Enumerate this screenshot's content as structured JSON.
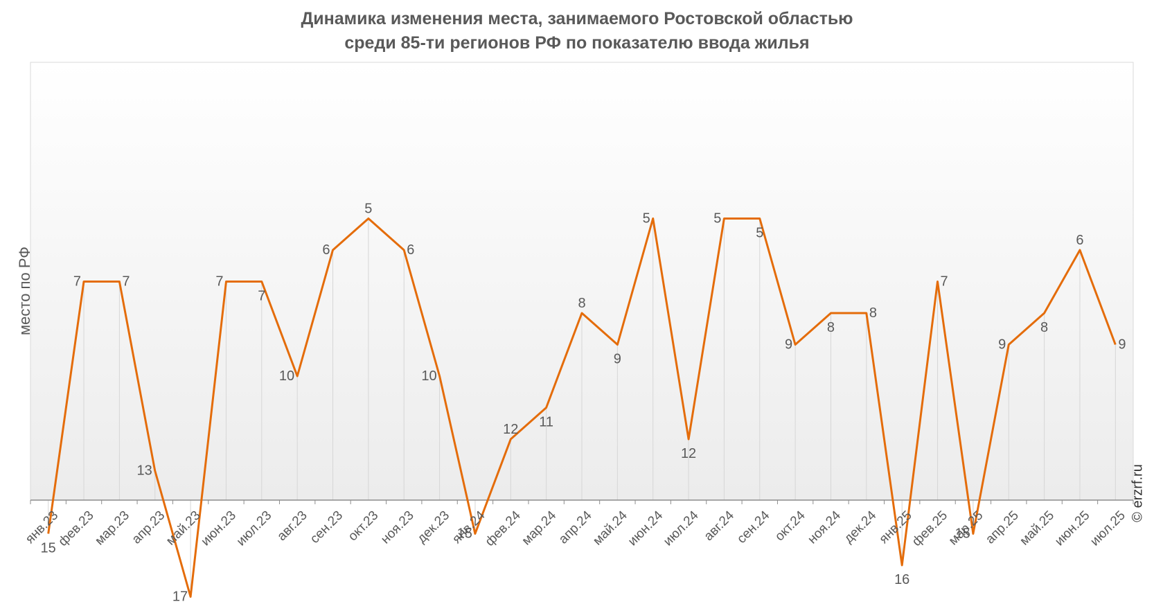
{
  "chart_data": {
    "type": "line",
    "title": [
      "Динамика изменения места, занимаемого Ростовской областью",
      "среди 85-ти регионов РФ по показателю ввода жилья"
    ],
    "ylabel": "место по РФ",
    "xlabel": "",
    "y_axis_inverted": true,
    "y_ticks_shown": false,
    "grid": "vertical drop lines at each point",
    "categories": [
      "янв.23",
      "фев.23",
      "мар.23",
      "апр.23",
      "май.23",
      "июн.23",
      "июл.23",
      "авг.23",
      "сен.23",
      "окт.23",
      "ноя.23",
      "дек.23",
      "янв.24",
      "фев.24",
      "мар.24",
      "апр.24",
      "май.24",
      "июн.24",
      "июл.24",
      "авг.24",
      "сен.24",
      "окт.24",
      "ноя.24",
      "дек.24",
      "янв.25",
      "фев.25",
      "мар.25",
      "апр.25",
      "май.25",
      "июн.25",
      "июл.25"
    ],
    "series": [
      {
        "values": [
          15,
          7,
          7,
          13,
          17,
          7,
          7,
          10,
          6,
          5,
          6,
          10,
          15,
          12,
          11,
          8,
          9,
          5,
          12,
          5,
          5,
          9,
          8,
          8,
          16,
          7,
          15,
          9,
          8,
          6,
          9
        ],
        "color": "#e46c0a"
      }
    ],
    "label_side": [
      "below",
      "left",
      "right",
      "left",
      "left",
      "left",
      "below",
      "left",
      "left",
      "above",
      "right",
      "left",
      "left",
      "above",
      "below",
      "above",
      "below",
      "left",
      "below",
      "left",
      "below",
      "left",
      "below",
      "right",
      "below",
      "right",
      "left",
      "left",
      "below",
      "above",
      "right"
    ]
  },
  "credit": "© erzrf.ru"
}
